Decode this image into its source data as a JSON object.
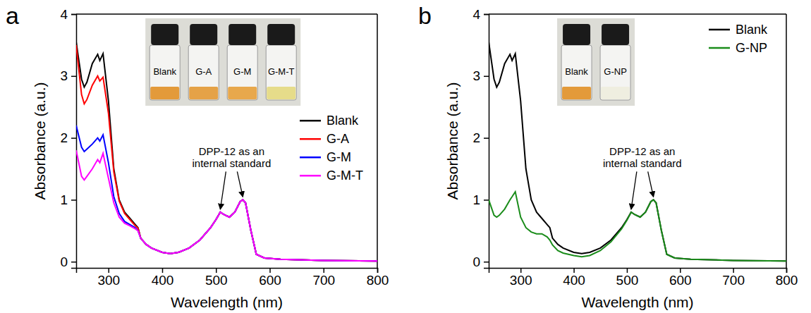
{
  "chart_data": [
    {
      "type": "line",
      "panel_label": "a",
      "x_label": "Wavelength (nm)",
      "y_label": "Absorbance (a.u.)",
      "x": [
        240,
        250,
        255,
        260,
        270,
        280,
        284,
        290,
        300,
        310,
        320,
        330,
        340,
        350,
        355,
        360,
        370,
        380,
        400,
        415,
        430,
        450,
        470,
        490,
        500,
        508,
        515,
        525,
        535,
        545,
        550,
        555,
        565,
        575,
        590,
        620,
        700,
        800
      ],
      "xlim": [
        240,
        800
      ],
      "xticks": [
        300,
        400,
        500,
        600,
        700,
        800
      ],
      "ylim": [
        -0.1,
        4
      ],
      "yticks": [
        0,
        1,
        2,
        3,
        4
      ],
      "legend": "right",
      "series": [
        {
          "name": "Blank",
          "color": "#000000",
          "values": [
            3.55,
            2.95,
            2.82,
            2.9,
            3.2,
            3.35,
            3.25,
            3.36,
            2.6,
            1.5,
            1.0,
            0.8,
            0.7,
            0.6,
            0.55,
            0.38,
            0.28,
            0.22,
            0.15,
            0.13,
            0.15,
            0.22,
            0.35,
            0.55,
            0.68,
            0.8,
            0.76,
            0.72,
            0.8,
            0.97,
            1.0,
            0.95,
            0.5,
            0.12,
            0.06,
            0.04,
            0.02,
            0.01
          ]
        },
        {
          "name": "G-A",
          "color": "#ff0000",
          "values": [
            3.5,
            2.7,
            2.55,
            2.62,
            2.85,
            3.0,
            2.92,
            2.98,
            2.4,
            1.45,
            0.98,
            0.78,
            0.68,
            0.58,
            0.54,
            0.38,
            0.28,
            0.22,
            0.15,
            0.13,
            0.15,
            0.22,
            0.35,
            0.55,
            0.68,
            0.8,
            0.76,
            0.72,
            0.8,
            0.97,
            1.0,
            0.95,
            0.5,
            0.12,
            0.06,
            0.04,
            0.02,
            0.01
          ]
        },
        {
          "name": "G-M",
          "color": "#0000ff",
          "values": [
            2.2,
            1.85,
            1.78,
            1.82,
            1.9,
            2.0,
            1.95,
            2.05,
            1.6,
            1.05,
            0.78,
            0.65,
            0.6,
            0.55,
            0.5,
            0.38,
            0.28,
            0.22,
            0.15,
            0.13,
            0.15,
            0.22,
            0.35,
            0.55,
            0.68,
            0.8,
            0.76,
            0.72,
            0.8,
            0.97,
            1.0,
            0.95,
            0.5,
            0.12,
            0.06,
            0.04,
            0.02,
            0.01
          ]
        },
        {
          "name": "G-M-T",
          "color": "#ff00ff",
          "values": [
            1.8,
            1.38,
            1.32,
            1.38,
            1.5,
            1.65,
            1.6,
            1.75,
            1.35,
            0.95,
            0.72,
            0.62,
            0.58,
            0.53,
            0.5,
            0.38,
            0.28,
            0.22,
            0.15,
            0.13,
            0.15,
            0.22,
            0.35,
            0.55,
            0.68,
            0.8,
            0.76,
            0.72,
            0.8,
            0.97,
            1.0,
            0.95,
            0.5,
            0.12,
            0.06,
            0.04,
            0.02,
            0.01
          ]
        }
      ],
      "annotation": {
        "text": [
          "DPP-12 as an",
          "internal standard"
        ],
        "x": [
          508,
          550
        ]
      },
      "inset_labels": [
        "Blank",
        "G-A",
        "G-M",
        "G-M-T"
      ]
    },
    {
      "type": "line",
      "panel_label": "b",
      "x_label": "Wavelength (nm)",
      "y_label": "Absorbance (a.u.)",
      "x": [
        240,
        250,
        255,
        260,
        270,
        280,
        284,
        290,
        300,
        310,
        320,
        330,
        340,
        350,
        355,
        360,
        370,
        380,
        400,
        415,
        430,
        450,
        470,
        490,
        500,
        508,
        515,
        525,
        535,
        545,
        550,
        555,
        565,
        575,
        590,
        620,
        700,
        800
      ],
      "xlim": [
        240,
        800
      ],
      "xticks": [
        300,
        400,
        500,
        600,
        700,
        800
      ],
      "ylim": [
        -0.1,
        4
      ],
      "yticks": [
        0,
        1,
        2,
        3,
        4
      ],
      "legend": "upper right",
      "series": [
        {
          "name": "Blank",
          "color": "#000000",
          "values": [
            3.55,
            2.95,
            2.82,
            2.9,
            3.2,
            3.35,
            3.25,
            3.36,
            2.6,
            1.5,
            1.0,
            0.8,
            0.7,
            0.6,
            0.55,
            0.38,
            0.28,
            0.22,
            0.15,
            0.13,
            0.15,
            0.22,
            0.35,
            0.55,
            0.68,
            0.8,
            0.76,
            0.72,
            0.8,
            0.97,
            1.0,
            0.95,
            0.5,
            0.12,
            0.06,
            0.04,
            0.02,
            0.01
          ]
        },
        {
          "name": "G-NP",
          "color": "#1a8c1a",
          "values": [
            1.0,
            0.75,
            0.72,
            0.75,
            0.85,
            1.0,
            1.05,
            1.13,
            0.72,
            0.55,
            0.48,
            0.45,
            0.45,
            0.4,
            0.35,
            0.27,
            0.18,
            0.14,
            0.1,
            0.08,
            0.1,
            0.18,
            0.32,
            0.53,
            0.67,
            0.8,
            0.76,
            0.72,
            0.8,
            0.97,
            1.0,
            0.95,
            0.5,
            0.12,
            0.06,
            0.04,
            0.02,
            0.01
          ]
        }
      ],
      "annotation": {
        "text": [
          "DPP-12 as an",
          "internal standard"
        ],
        "x": [
          508,
          550
        ]
      },
      "inset_labels": [
        "Blank",
        "G-NP"
      ]
    }
  ]
}
